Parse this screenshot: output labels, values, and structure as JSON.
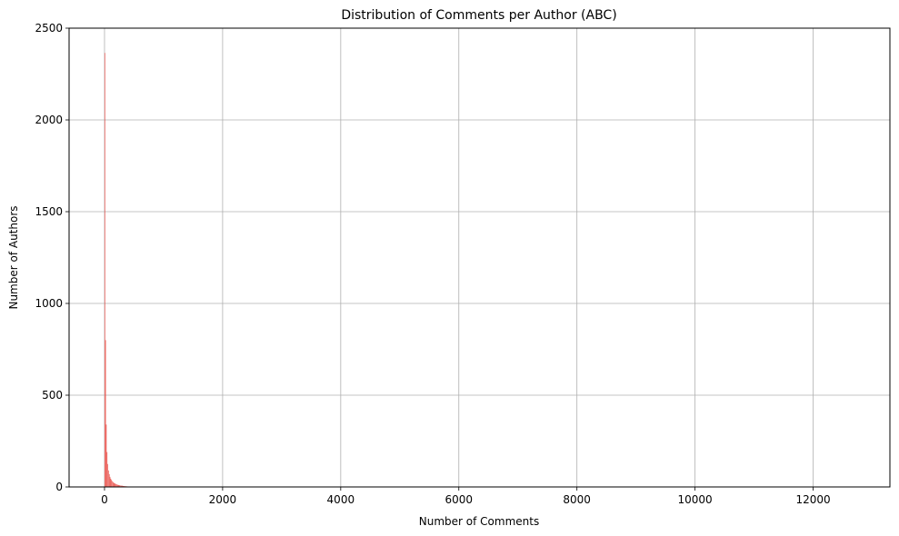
{
  "chart_data": {
    "type": "bar",
    "title": "Distribution of Comments per Author (ABC)",
    "xlabel": "Number of Comments",
    "ylabel": "Number of Authors",
    "xlim": [
      -600,
      13300
    ],
    "ylim": [
      0,
      2500
    ],
    "xticks": [
      0,
      2000,
      4000,
      6000,
      8000,
      10000,
      12000
    ],
    "yticks": [
      0,
      500,
      1000,
      1500,
      2000,
      2500
    ],
    "grid": true,
    "bar_color": "#e8473f",
    "bin_width": 12.6,
    "x": [
      6.3,
      18.9,
      31.5,
      44.1,
      56.7,
      69.3,
      81.9,
      94.5,
      107.1,
      119.7,
      132.3,
      144.9,
      157.5,
      170.1,
      182.7,
      195.3,
      207.9,
      220.5,
      233.1,
      245.7,
      258.3,
      270.9,
      283.5,
      296.1,
      308.7,
      321.3,
      333.9,
      346.5,
      359.1,
      371.7,
      384.3
    ],
    "values": [
      2365,
      800,
      340,
      190,
      125,
      90,
      70,
      55,
      45,
      38,
      32,
      27,
      23,
      20,
      18,
      16,
      14,
      12,
      11,
      10,
      9,
      8,
      7,
      7,
      6,
      5,
      5,
      4,
      4,
      3,
      3
    ]
  }
}
